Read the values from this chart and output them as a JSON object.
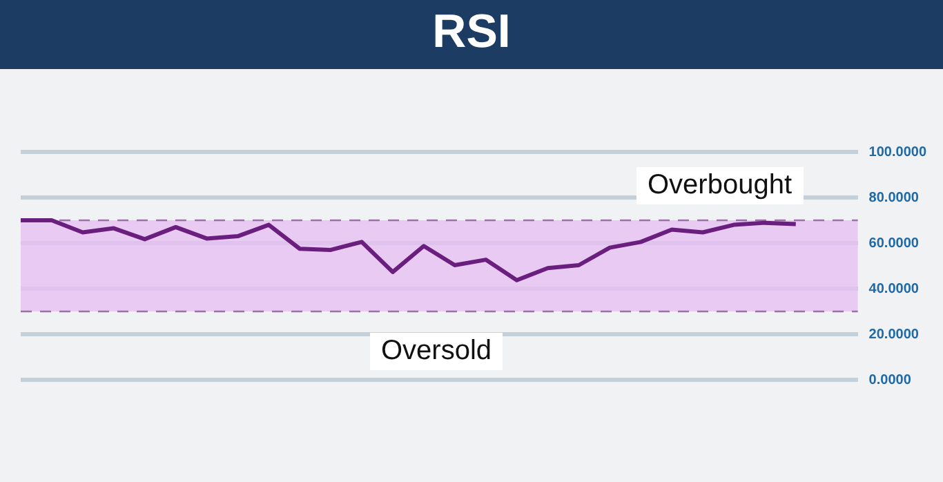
{
  "chart_data": {
    "type": "line",
    "title": "RSI",
    "categories": [
      null,
      null,
      null,
      null,
      null,
      null,
      null,
      null,
      null,
      null,
      null,
      null,
      null,
      null,
      null,
      null,
      null,
      null,
      null,
      null,
      null,
      null,
      null,
      null,
      null,
      null,
      null,
      null
    ],
    "series": [
      {
        "color": "#6a1f7e",
        "values": [
          70,
          70,
          64.7,
          66.5,
          61.7,
          67,
          62,
          63,
          68,
          57.5,
          57,
          60.5,
          47.3,
          58.7,
          50.3,
          52.7,
          43.7,
          49,
          50.3,
          58,
          60.5,
          65.9,
          64.7,
          68,
          68.9,
          68.3,
          null,
          null
        ]
      }
    ],
    "ylim": [
      0,
      100
    ],
    "yticks": [
      {
        "value": 0,
        "label": "0.0000"
      },
      {
        "value": 20,
        "label": "20.0000"
      },
      {
        "value": 40,
        "label": "40.0000"
      },
      {
        "value": 60,
        "label": "60.0000"
      },
      {
        "value": 80,
        "label": "80.0000"
      },
      {
        "value": 100,
        "label": "100.0000"
      }
    ],
    "tick_labels": "y",
    "grid": "y",
    "legend": false,
    "marker": "none",
    "line_style": "solid",
    "bands": [
      {
        "axis": "y",
        "from": 30,
        "to": 70,
        "color": "#e6bff2"
      }
    ],
    "ref_lines": [
      {
        "axis": "y",
        "value": 70,
        "color": "#9b72a8",
        "line_style": "dashed"
      },
      {
        "axis": "y",
        "value": 30,
        "color": "#9b72a8",
        "line_style": "dashed"
      }
    ],
    "annotations": [
      "Overbought",
      "Oversold"
    ]
  }
}
